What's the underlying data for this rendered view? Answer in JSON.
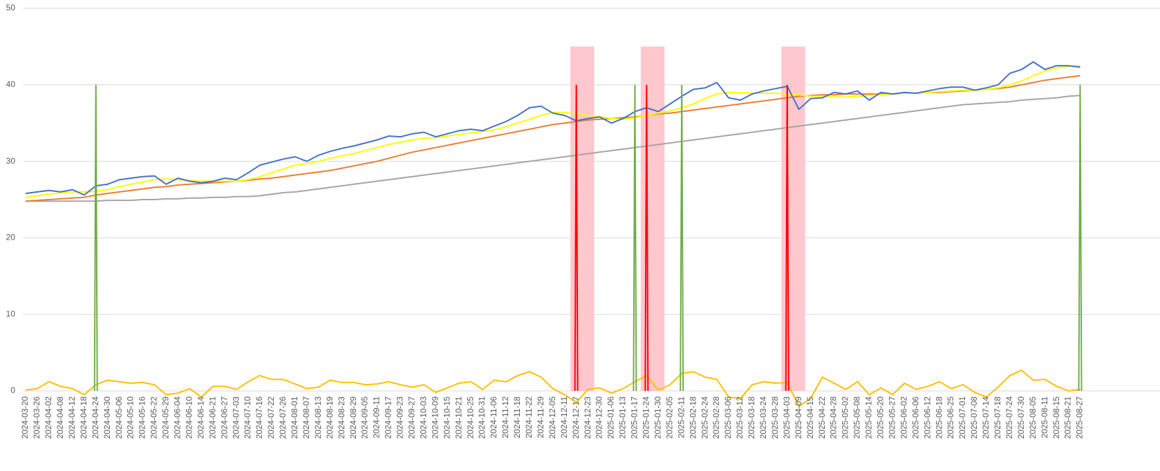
{
  "chart_data": {
    "type": "combo",
    "categories": [
      "2024-03-20",
      "2024-03-26",
      "2024-04-02",
      "2024-04-08",
      "2024-04-12",
      "2024-04-18",
      "2024-04-24",
      "2024-04-30",
      "2024-05-06",
      "2024-05-10",
      "2024-05-16",
      "2024-05-22",
      "2024-05-29",
      "2024-06-04",
      "2024-06-10",
      "2024-06-14",
      "2024-06-21",
      "2024-06-27",
      "2024-07-03",
      "2024-07-10",
      "2024-07-16",
      "2024-07-22",
      "2024-07-26",
      "2024-08-01",
      "2024-08-07",
      "2024-08-13",
      "2024-08-19",
      "2024-08-23",
      "2024-08-29",
      "2024-09-05",
      "2024-09-11",
      "2024-09-17",
      "2024-09-23",
      "2024-09-27",
      "2024-10-03",
      "2024-10-09",
      "2024-10-15",
      "2024-10-21",
      "2024-10-25",
      "2024-10-31",
      "2024-11-06",
      "2024-11-12",
      "2024-11-18",
      "2024-11-22",
      "2024-11-29",
      "2024-12-05",
      "2024-12-11",
      "2024-12-17",
      "2024-12-23",
      "2024-12-30",
      "2025-01-06",
      "2025-01-13",
      "2025-01-17",
      "2025-01-24",
      "2025-01-30",
      "2025-02-05",
      "2025-02-11",
      "2025-02-18",
      "2025-02-24",
      "2025-02-28",
      "2025-03-06",
      "2025-03-12",
      "2025-03-18",
      "2025-03-24",
      "2025-03-28",
      "2025-04-03",
      "2025-04-09",
      "2025-04-15",
      "2025-04-22",
      "2025-04-28",
      "2025-05-02",
      "2025-05-08",
      "2025-05-14",
      "2025-05-20",
      "2025-05-27",
      "2025-06-02",
      "2025-06-06",
      "2025-06-12",
      "2025-06-18",
      "2025-06-25",
      "2025-07-01",
      "2025-07-08",
      "2025-07-14",
      "2025-07-18",
      "2025-07-24",
      "2025-07-30",
      "2025-08-05",
      "2025-08-11",
      "2025-08-15",
      "2025-08-21",
      "2025-08-27"
    ],
    "ylim": [
      0,
      50
    ],
    "yticks": [
      0,
      10,
      20,
      30,
      40,
      50
    ],
    "grid": true,
    "series": [
      {
        "kind": "bar",
        "color": "#ffc7ce",
        "values": [
          null,
          null,
          null,
          null,
          null,
          null,
          null,
          null,
          null,
          null,
          null,
          null,
          null,
          null,
          null,
          null,
          null,
          null,
          null,
          null,
          null,
          null,
          null,
          null,
          null,
          null,
          null,
          null,
          null,
          null,
          null,
          null,
          null,
          null,
          null,
          null,
          null,
          null,
          null,
          null,
          null,
          null,
          null,
          null,
          null,
          null,
          null,
          45,
          45,
          null,
          null,
          null,
          null,
          45,
          45,
          null,
          null,
          null,
          null,
          null,
          null,
          null,
          null,
          null,
          null,
          45,
          45,
          null,
          null,
          null,
          null,
          null,
          null,
          null,
          null,
          null,
          null,
          null,
          null,
          null,
          null,
          null,
          null,
          null,
          null,
          null,
          null,
          null,
          null,
          null,
          null
        ]
      },
      {
        "kind": "line",
        "color": "#a5a5a5",
        "values": [
          24.8,
          24.8,
          24.8,
          24.8,
          24.8,
          24.8,
          24.8,
          24.9,
          24.9,
          24.9,
          25.0,
          25.0,
          25.1,
          25.1,
          25.2,
          25.2,
          25.3,
          25.3,
          25.4,
          25.4,
          25.5,
          25.7,
          25.9,
          26.0,
          26.2,
          26.4,
          26.6,
          26.8,
          27.0,
          27.2,
          27.4,
          27.6,
          27.8,
          28.0,
          28.2,
          28.4,
          28.6,
          28.8,
          29.0,
          29.2,
          29.4,
          29.6,
          29.8,
          30.0,
          30.2,
          30.4,
          30.6,
          30.8,
          31.0,
          31.2,
          31.4,
          31.6,
          31.8,
          32.0,
          32.2,
          32.4,
          32.6,
          32.8,
          33.0,
          33.2,
          33.4,
          33.6,
          33.8,
          34.0,
          34.2,
          34.4,
          34.6,
          34.8,
          35.0,
          35.2,
          35.4,
          35.6,
          35.8,
          36.0,
          36.2,
          36.4,
          36.6,
          36.8,
          37.0,
          37.2,
          37.4,
          37.5,
          37.6,
          37.7,
          37.8,
          38.0,
          38.1,
          38.2,
          38.3,
          38.5,
          38.6
        ]
      },
      {
        "kind": "line",
        "color": "#ed7d31",
        "values": [
          24.8,
          24.9,
          25.0,
          25.1,
          25.2,
          25.3,
          25.6,
          25.8,
          26.0,
          26.2,
          26.4,
          26.6,
          26.7,
          26.9,
          27.0,
          27.1,
          27.2,
          27.3,
          27.4,
          27.5,
          27.7,
          27.8,
          28.0,
          28.2,
          28.4,
          28.6,
          28.8,
          29.1,
          29.4,
          29.7,
          30.0,
          30.4,
          30.8,
          31.2,
          31.5,
          31.8,
          32.1,
          32.4,
          32.7,
          33.0,
          33.3,
          33.6,
          33.9,
          34.2,
          34.5,
          34.8,
          35.0,
          35.2,
          35.4,
          35.5,
          35.6,
          35.7,
          35.8,
          36.0,
          36.2,
          36.3,
          36.5,
          36.7,
          36.9,
          37.1,
          37.3,
          37.5,
          37.7,
          37.9,
          38.1,
          38.3,
          38.5,
          38.6,
          38.7,
          38.7,
          38.8,
          38.8,
          38.8,
          38.8,
          38.8,
          38.9,
          38.9,
          39.0,
          39.0,
          39.1,
          39.2,
          39.3,
          39.4,
          39.5,
          39.7,
          40.0,
          40.3,
          40.6,
          40.8,
          41.0,
          41.2
        ]
      },
      {
        "kind": "line",
        "color": "#ffff00",
        "values": [
          25.3,
          25.5,
          25.7,
          25.9,
          26.0,
          26.0,
          26.1,
          26.3,
          26.7,
          27.0,
          27.3,
          27.6,
          27.7,
          27.6,
          27.5,
          27.4,
          27.4,
          27.4,
          27.4,
          27.6,
          28.0,
          28.5,
          29.0,
          29.5,
          29.7,
          30.0,
          30.4,
          30.7,
          31.0,
          31.4,
          31.8,
          32.2,
          32.5,
          32.8,
          33.0,
          33.1,
          33.3,
          33.5,
          33.7,
          33.9,
          34.1,
          34.5,
          35.0,
          35.5,
          36.0,
          36.4,
          36.4,
          36.2,
          36.0,
          35.8,
          35.6,
          35.5,
          35.7,
          36.0,
          36.3,
          36.6,
          37.0,
          37.5,
          38.2,
          38.8,
          39.0,
          39.0,
          38.9,
          38.9,
          38.9,
          38.8,
          38.7,
          38.5,
          38.5,
          38.4,
          38.4,
          38.5,
          38.6,
          38.7,
          38.8,
          38.9,
          38.9,
          39.0,
          39.1,
          39.2,
          39.3,
          39.3,
          39.4,
          39.6,
          40.0,
          40.5,
          41.2,
          41.8,
          42.2,
          42.4,
          42.5
        ]
      },
      {
        "kind": "line",
        "color": "#4472c4",
        "values": [
          25.8,
          26.0,
          26.2,
          26.0,
          26.3,
          25.6,
          26.8,
          27.0,
          27.6,
          27.8,
          28.0,
          28.1,
          27.0,
          27.8,
          27.4,
          27.2,
          27.4,
          27.8,
          27.6,
          28.5,
          29.5,
          29.9,
          30.3,
          30.6,
          30.0,
          30.8,
          31.3,
          31.7,
          32.0,
          32.4,
          32.8,
          33.3,
          33.2,
          33.6,
          33.8,
          33.2,
          33.6,
          34.0,
          34.2,
          34.0,
          34.6,
          35.2,
          36.0,
          37.0,
          37.2,
          36.3,
          36.0,
          35.3,
          35.6,
          35.8,
          35.0,
          35.6,
          36.5,
          37.0,
          36.5,
          37.5,
          38.5,
          39.4,
          39.6,
          40.3,
          38.3,
          38.0,
          38.8,
          39.2,
          39.5,
          39.8,
          36.8,
          38.2,
          38.3,
          39.0,
          38.8,
          39.2,
          38.0,
          39.0,
          38.8,
          39.0,
          38.9,
          39.2,
          39.5,
          39.7,
          39.7,
          39.3,
          39.6,
          40.0,
          41.5,
          42.0,
          43.0,
          42.0,
          42.5,
          42.5,
          42.3
        ]
      },
      {
        "kind": "line",
        "color": "#ffc000",
        "values": [
          0.1,
          0.3,
          1.2,
          0.6,
          0.3,
          -0.5,
          0.8,
          1.4,
          1.2,
          1.0,
          1.1,
          0.8,
          -0.5,
          -0.3,
          0.3,
          -0.8,
          0.6,
          0.6,
          0.2,
          1.2,
          2.0,
          1.5,
          1.5,
          0.9,
          0.3,
          0.5,
          1.4,
          1.1,
          1.1,
          0.8,
          0.9,
          1.2,
          0.8,
          0.5,
          0.8,
          -0.2,
          0.4,
          1.0,
          1.2,
          0.2,
          1.4,
          1.2,
          2.0,
          2.5,
          1.8,
          0.3,
          -0.5,
          -1.5,
          0.2,
          0.4,
          -0.3,
          0.3,
          1.2,
          2.0,
          0.1,
          0.8,
          2.3,
          2.5,
          1.8,
          1.5,
          -0.8,
          -1.0,
          0.8,
          1.2,
          1.0,
          1.1,
          -2.0,
          -1.0,
          1.8,
          1.0,
          0.2,
          1.2,
          -0.5,
          0.4,
          -0.5,
          1.0,
          0.2,
          0.6,
          1.2,
          0.3,
          0.8,
          -0.2,
          -0.8,
          0.5,
          2.0,
          2.7,
          1.4,
          1.5,
          0.6,
          0.0,
          0.2
        ]
      },
      {
        "kind": "spike",
        "color": "#70ad47",
        "values": [
          null,
          null,
          null,
          null,
          null,
          null,
          40,
          null,
          null,
          null,
          null,
          null,
          null,
          null,
          null,
          null,
          null,
          null,
          null,
          null,
          null,
          null,
          null,
          null,
          null,
          null,
          null,
          null,
          null,
          null,
          null,
          null,
          null,
          null,
          null,
          null,
          null,
          null,
          null,
          null,
          null,
          null,
          null,
          null,
          null,
          null,
          null,
          null,
          null,
          null,
          null,
          null,
          40,
          null,
          null,
          null,
          40,
          null,
          null,
          null,
          null,
          null,
          null,
          null,
          null,
          null,
          null,
          null,
          null,
          null,
          null,
          null,
          null,
          null,
          null,
          null,
          null,
          null,
          null,
          null,
          null,
          null,
          null,
          null,
          null,
          null,
          null,
          null,
          null,
          null,
          40
        ]
      },
      {
        "kind": "spike",
        "color": "#ff0000",
        "values": [
          null,
          null,
          null,
          null,
          null,
          null,
          null,
          null,
          null,
          null,
          null,
          null,
          null,
          null,
          null,
          null,
          null,
          null,
          null,
          null,
          null,
          null,
          null,
          null,
          null,
          null,
          null,
          null,
          null,
          null,
          null,
          null,
          null,
          null,
          null,
          null,
          null,
          null,
          null,
          null,
          null,
          null,
          null,
          null,
          null,
          null,
          null,
          40,
          null,
          null,
          null,
          null,
          null,
          40,
          null,
          null,
          null,
          null,
          null,
          null,
          null,
          null,
          null,
          null,
          null,
          40,
          null,
          null,
          null,
          null,
          null,
          null,
          null,
          null,
          null,
          null,
          null,
          null,
          null,
          null,
          null,
          null,
          null,
          null,
          null,
          null,
          null,
          null,
          null,
          null,
          null
        ]
      }
    ]
  }
}
